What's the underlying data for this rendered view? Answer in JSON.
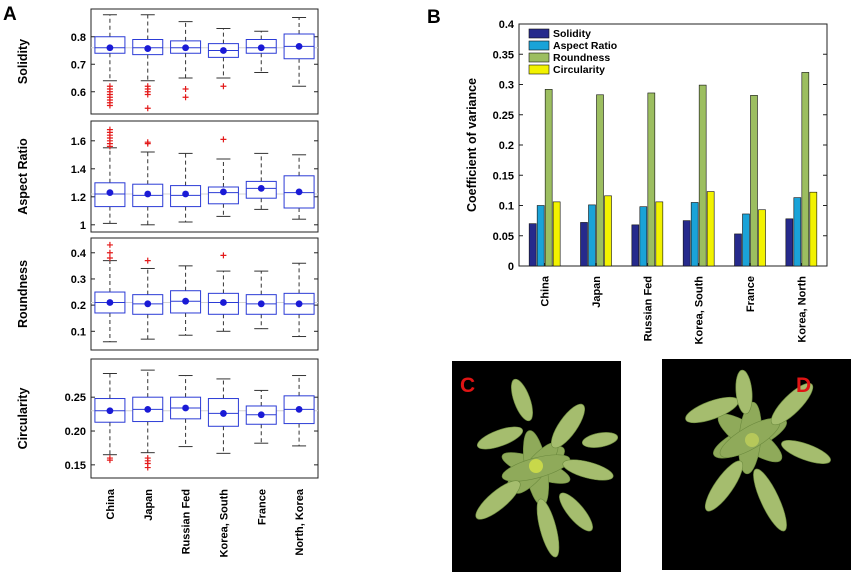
{
  "panels": {
    "a": "A",
    "b": "B",
    "c": "C",
    "d": "D"
  },
  "chart_data": [
    {
      "id": "A",
      "type": "boxplot",
      "categories": [
        "China",
        "Japan",
        "Russian Fed",
        "Korea, South",
        "France",
        "North, Korea"
      ],
      "subplots": [
        {
          "ylabel": "Solidity",
          "ylim": [
            0.53,
            0.89
          ],
          "yticks": [
            0.6,
            0.7,
            0.8
          ],
          "ytick_labels": [
            "0.6",
            "0.7",
            "0.8"
          ],
          "reference": 0.76,
          "boxes": [
            {
              "q1": 0.74,
              "median": 0.76,
              "q3": 0.8,
              "whislo": 0.64,
              "whishi": 0.88,
              "mean": 0.76,
              "outliers": [
                0.62,
                0.61,
                0.6,
                0.59,
                0.58,
                0.57,
                0.56,
                0.55
              ]
            },
            {
              "q1": 0.735,
              "median": 0.76,
              "q3": 0.79,
              "whislo": 0.64,
              "whishi": 0.88,
              "mean": 0.757,
              "outliers": [
                0.62,
                0.61,
                0.6,
                0.59,
                0.54
              ]
            },
            {
              "q1": 0.74,
              "median": 0.76,
              "q3": 0.785,
              "whislo": 0.65,
              "whishi": 0.855,
              "mean": 0.76,
              "outliers": [
                0.61,
                0.58
              ]
            },
            {
              "q1": 0.725,
              "median": 0.75,
              "q3": 0.775,
              "whislo": 0.65,
              "whishi": 0.83,
              "mean": 0.75,
              "outliers": [
                0.62
              ]
            },
            {
              "q1": 0.74,
              "median": 0.76,
              "q3": 0.79,
              "whislo": 0.67,
              "whishi": 0.82,
              "mean": 0.76,
              "outliers": []
            },
            {
              "q1": 0.72,
              "median": 0.765,
              "q3": 0.81,
              "whislo": 0.62,
              "whishi": 0.87,
              "mean": 0.765,
              "outliers": []
            }
          ]
        },
        {
          "ylabel": "Aspect Ratio",
          "ylim": [
            0.97,
            1.72
          ],
          "yticks": [
            1,
            1.2,
            1.4,
            1.6
          ],
          "ytick_labels": [
            "1",
            "1.2",
            "1.4",
            "1.6"
          ],
          "reference": 1.22,
          "boxes": [
            {
              "q1": 1.13,
              "median": 1.22,
              "q3": 1.3,
              "whislo": 1.01,
              "whishi": 1.55,
              "mean": 1.23,
              "outliers": [
                1.56,
                1.58,
                1.6,
                1.62,
                1.64,
                1.66,
                1.68
              ]
            },
            {
              "q1": 1.13,
              "median": 1.21,
              "q3": 1.29,
              "whislo": 1.0,
              "whishi": 1.52,
              "mean": 1.22,
              "outliers": [
                1.58,
                1.59
              ]
            },
            {
              "q1": 1.13,
              "median": 1.21,
              "q3": 1.28,
              "whislo": 1.02,
              "whishi": 1.51,
              "mean": 1.22,
              "outliers": []
            },
            {
              "q1": 1.15,
              "median": 1.23,
              "q3": 1.27,
              "whislo": 1.06,
              "whishi": 1.47,
              "mean": 1.235,
              "outliers": [
                1.61
              ]
            },
            {
              "q1": 1.19,
              "median": 1.26,
              "q3": 1.31,
              "whislo": 1.11,
              "whishi": 1.51,
              "mean": 1.26,
              "outliers": []
            },
            {
              "q1": 1.12,
              "median": 1.23,
              "q3": 1.35,
              "whislo": 1.04,
              "whishi": 1.5,
              "mean": 1.235,
              "outliers": []
            }
          ]
        },
        {
          "ylabel": "Roundness",
          "ylim": [
            0.04,
            0.445
          ],
          "yticks": [
            0.1,
            0.2,
            0.3,
            0.4
          ],
          "ytick_labels": [
            "0.1",
            "0.2",
            "0.3",
            "0.4"
          ],
          "reference": 0.21,
          "boxes": [
            {
              "q1": 0.17,
              "median": 0.21,
              "q3": 0.25,
              "whislo": 0.06,
              "whishi": 0.37,
              "mean": 0.21,
              "outliers": [
                0.38,
                0.4,
                0.43
              ]
            },
            {
              "q1": 0.165,
              "median": 0.205,
              "q3": 0.24,
              "whislo": 0.07,
              "whishi": 0.34,
              "mean": 0.205,
              "outliers": [
                0.37
              ]
            },
            {
              "q1": 0.17,
              "median": 0.215,
              "q3": 0.255,
              "whislo": 0.085,
              "whishi": 0.35,
              "mean": 0.215,
              "outliers": []
            },
            {
              "q1": 0.165,
              "median": 0.21,
              "q3": 0.245,
              "whislo": 0.1,
              "whishi": 0.33,
              "mean": 0.21,
              "outliers": [
                0.39
              ]
            },
            {
              "q1": 0.165,
              "median": 0.205,
              "q3": 0.24,
              "whislo": 0.11,
              "whishi": 0.33,
              "mean": 0.205,
              "outliers": []
            },
            {
              "q1": 0.165,
              "median": 0.205,
              "q3": 0.245,
              "whislo": 0.08,
              "whishi": 0.36,
              "mean": 0.205,
              "outliers": []
            }
          ]
        },
        {
          "ylabel": "Circularity",
          "ylim": [
            0.135,
            0.302
          ],
          "yticks": [
            0.15,
            0.2,
            0.25
          ],
          "ytick_labels": [
            "0.15",
            "0.20",
            "0.25"
          ],
          "reference": 0.23,
          "boxes": [
            {
              "q1": 0.213,
              "median": 0.23,
              "q3": 0.248,
              "whislo": 0.165,
              "whishi": 0.285,
              "mean": 0.23,
              "outliers": [
                0.16,
                0.157
              ]
            },
            {
              "q1": 0.214,
              "median": 0.232,
              "q3": 0.25,
              "whislo": 0.168,
              "whishi": 0.29,
              "mean": 0.232,
              "outliers": [
                0.16,
                0.156,
                0.152,
                0.146
              ]
            },
            {
              "q1": 0.218,
              "median": 0.234,
              "q3": 0.25,
              "whislo": 0.177,
              "whishi": 0.282,
              "mean": 0.234,
              "outliers": []
            },
            {
              "q1": 0.207,
              "median": 0.226,
              "q3": 0.248,
              "whislo": 0.167,
              "whishi": 0.277,
              "mean": 0.226,
              "outliers": []
            },
            {
              "q1": 0.21,
              "median": 0.224,
              "q3": 0.237,
              "whislo": 0.182,
              "whishi": 0.26,
              "mean": 0.224,
              "outliers": []
            },
            {
              "q1": 0.211,
              "median": 0.232,
              "q3": 0.252,
              "whislo": 0.178,
              "whishi": 0.282,
              "mean": 0.232,
              "outliers": []
            }
          ]
        }
      ]
    },
    {
      "id": "B",
      "type": "bar",
      "ylabel": "Coefficient of variance",
      "ylim": [
        0,
        0.4
      ],
      "yticks": [
        0,
        0.05,
        0.1,
        0.15,
        0.2,
        0.25,
        0.3,
        0.35,
        0.4
      ],
      "ytick_labels": [
        "0",
        "0.05",
        "0.1",
        "0.15",
        "0.2",
        "0.25",
        "0.3",
        "0.35",
        "0.4"
      ],
      "categories": [
        "China",
        "Japan",
        "Russian Fed",
        "Korea, South",
        "France",
        "Korea, North"
      ],
      "legend_position": "top-left",
      "series": [
        {
          "name": "Solidity",
          "color": "#262a8c",
          "values": [
            0.07,
            0.072,
            0.068,
            0.075,
            0.053,
            0.078
          ]
        },
        {
          "name": "Aspect Ratio",
          "color": "#1aa3d8",
          "values": [
            0.1,
            0.101,
            0.098,
            0.105,
            0.086,
            0.113
          ]
        },
        {
          "name": "Roundness",
          "color": "#9cbe60",
          "values": [
            0.292,
            0.283,
            0.286,
            0.299,
            0.282,
            0.32
          ]
        },
        {
          "name": "Circularity",
          "color": "#f2f200",
          "values": [
            0.106,
            0.116,
            0.106,
            0.123,
            0.093,
            0.122
          ]
        }
      ]
    }
  ]
}
